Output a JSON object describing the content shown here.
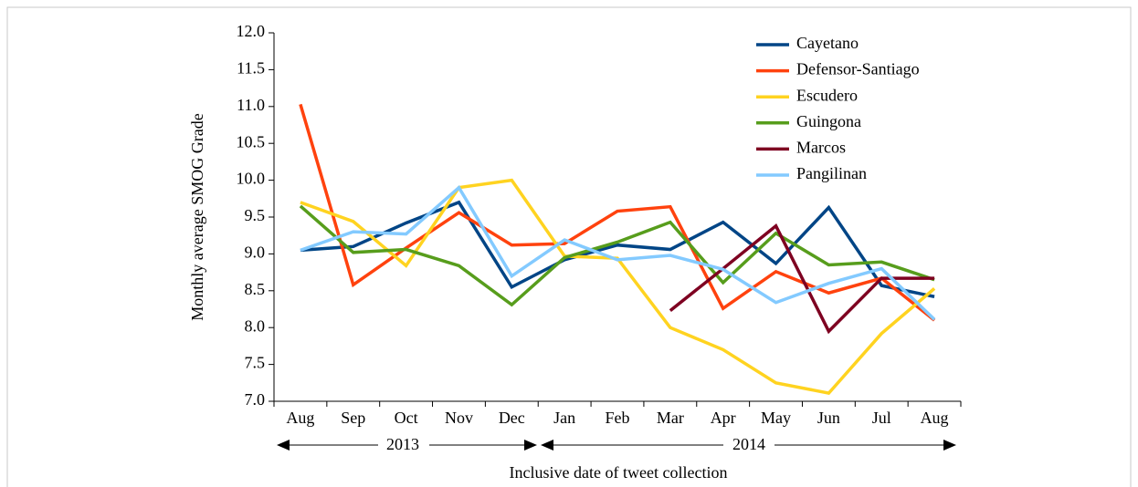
{
  "chart_data": {
    "type": "line",
    "x_label": "Inclusive date of tweet collection",
    "y_label": "Monthly average SMOG Grade",
    "categories": [
      "Aug",
      "Sep",
      "Oct",
      "Nov",
      "Dec",
      "Jan",
      "Feb",
      "Mar",
      "Apr",
      "May",
      "Jun",
      "Jul",
      "Aug"
    ],
    "year_labels": [
      "2013",
      "2014"
    ],
    "ylim": [
      7,
      12
    ],
    "yticks": [
      {
        "value": 7,
        "label": "7.0"
      },
      7.5,
      {
        "value": 8,
        "label": "8.0"
      },
      8.5,
      {
        "value": 9,
        "label": "9.0"
      },
      9.5,
      {
        "value": 10,
        "label": "10.0"
      },
      10.5,
      {
        "value": 11,
        "label": "11.0"
      },
      11.5,
      {
        "value": 12,
        "label": "12.0"
      }
    ],
    "grid": false,
    "legend": "top-right",
    "series": [
      {
        "name": "Cayetano",
        "color": "#004586",
        "values": [
          9.05,
          9.1,
          9.42,
          9.7,
          8.55,
          8.92,
          9.12,
          9.06,
          9.43,
          8.87,
          9.63,
          8.57,
          8.42
        ]
      },
      {
        "name": "Defensor-Santiago",
        "color": "#ff420e",
        "values": [
          11.03,
          8.58,
          9.08,
          9.56,
          9.12,
          9.14,
          9.58,
          9.64,
          8.26,
          8.76,
          8.47,
          8.67,
          8.1
        ]
      },
      {
        "name": "Escudero",
        "color": "#ffd320",
        "values": [
          9.7,
          9.44,
          8.84,
          9.9,
          10.0,
          8.97,
          8.94,
          8.0,
          7.7,
          7.25,
          7.11,
          7.92,
          8.53
        ]
      },
      {
        "name": "Guingona",
        "color": "#579d1c",
        "values": [
          9.65,
          9.02,
          9.06,
          8.84,
          8.31,
          8.95,
          9.16,
          9.43,
          8.61,
          9.28,
          8.85,
          8.89,
          8.65
        ]
      },
      {
        "name": "Marcos",
        "color": "#7e0021",
        "values": [
          null,
          null,
          null,
          null,
          null,
          null,
          null,
          8.23,
          8.8,
          9.38,
          7.95,
          8.67,
          8.67
        ]
      },
      {
        "name": "Pangilinan",
        "color": "#83caff",
        "values": [
          9.05,
          9.3,
          9.27,
          9.9,
          8.7,
          9.19,
          8.92,
          8.98,
          8.79,
          8.34,
          8.6,
          8.8,
          8.11
        ]
      }
    ]
  }
}
